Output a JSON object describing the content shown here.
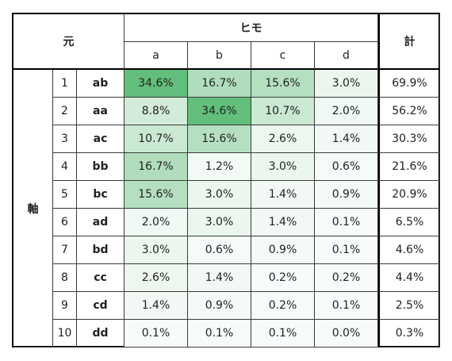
{
  "table": {
    "corner_label": "元",
    "himo_label": "ヒモ",
    "total_label": "計",
    "axis_label": "軸",
    "columns": [
      "a",
      "b",
      "c",
      "d"
    ],
    "rows": [
      {
        "index": "1",
        "key": "ab",
        "values": [
          "34.6%",
          "16.7%",
          "15.6%",
          "3.0%"
        ],
        "total": "69.9%"
      },
      {
        "index": "2",
        "key": "aa",
        "values": [
          "8.8%",
          "34.6%",
          "10.7%",
          "2.0%"
        ],
        "total": "56.2%"
      },
      {
        "index": "3",
        "key": "ac",
        "values": [
          "10.7%",
          "15.6%",
          "2.6%",
          "1.4%"
        ],
        "total": "30.3%"
      },
      {
        "index": "4",
        "key": "bb",
        "values": [
          "16.7%",
          "1.2%",
          "3.0%",
          "0.6%"
        ],
        "total": "21.6%"
      },
      {
        "index": "5",
        "key": "bc",
        "values": [
          "15.6%",
          "3.0%",
          "1.4%",
          "0.9%"
        ],
        "total": "20.9%"
      },
      {
        "index": "6",
        "key": "ad",
        "values": [
          "2.0%",
          "3.0%",
          "1.4%",
          "0.1%"
        ],
        "total": "6.5%"
      },
      {
        "index": "7",
        "key": "bd",
        "values": [
          "3.0%",
          "0.6%",
          "0.9%",
          "0.1%"
        ],
        "total": "4.6%"
      },
      {
        "index": "8",
        "key": "cc",
        "values": [
          "2.6%",
          "1.4%",
          "0.2%",
          "0.2%"
        ],
        "total": "4.4%"
      },
      {
        "index": "9",
        "key": "cd",
        "values": [
          "1.4%",
          "0.9%",
          "0.2%",
          "0.1%"
        ],
        "total": "2.5%"
      },
      {
        "index": "10",
        "key": "dd",
        "values": [
          "0.1%",
          "0.1%",
          "0.1%",
          "0.0%"
        ],
        "total": "0.3%"
      }
    ]
  },
  "colors": {
    "heat_high": "#63be7b",
    "heat_low": "#f8fcf9",
    "border": "#000000"
  }
}
